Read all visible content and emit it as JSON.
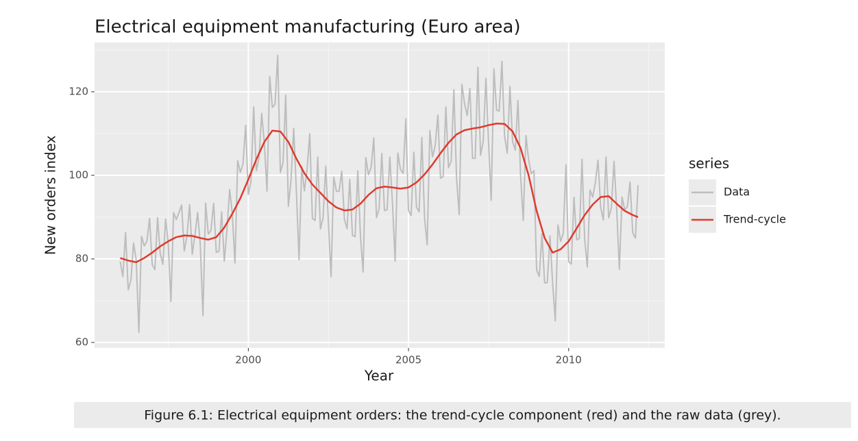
{
  "chart_data": {
    "type": "line",
    "title": "Electrical equipment manufacturing (Euro area)",
    "xlabel": "Year",
    "ylabel": "New orders index",
    "legend_title": "series",
    "legend": "right",
    "caption": "Figure 6.1: Electrical equipment orders: the trend-cycle component (red) and the raw data (grey).",
    "xlim": [
      1995.2,
      2013.0
    ],
    "xticks": [
      2000,
      2005,
      2010
    ],
    "ylim": [
      58.7,
      131.8
    ],
    "yticks": [
      60,
      80,
      100,
      120
    ],
    "grid": true,
    "minor_grid": true,
    "series": [
      {
        "name": "Data",
        "color": "#bdbdbd",
        "x": [
          1996,
          1996.083,
          1996.167,
          1996.25,
          1996.333,
          1996.417,
          1996.5,
          1996.583,
          1996.667,
          1996.75,
          1996.833,
          1996.917,
          1997,
          1997.083,
          1997.167,
          1997.25,
          1997.333,
          1997.417,
          1997.5,
          1997.583,
          1997.667,
          1997.75,
          1997.833,
          1997.917,
          1998,
          1998.083,
          1998.167,
          1998.25,
          1998.333,
          1998.417,
          1998.5,
          1998.583,
          1998.667,
          1998.75,
          1998.833,
          1998.917,
          1999,
          1999.083,
          1999.167,
          1999.25,
          1999.333,
          1999.417,
          1999.5,
          1999.583,
          1999.667,
          1999.75,
          1999.833,
          1999.917,
          2000,
          2000.083,
          2000.167,
          2000.25,
          2000.333,
          2000.417,
          2000.5,
          2000.583,
          2000.667,
          2000.75,
          2000.833,
          2000.917,
          2001,
          2001.083,
          2001.167,
          2001.25,
          2001.333,
          2001.417,
          2001.5,
          2001.583,
          2001.667,
          2001.75,
          2001.833,
          2001.917,
          2002,
          2002.083,
          2002.167,
          2002.25,
          2002.333,
          2002.417,
          2002.5,
          2002.583,
          2002.667,
          2002.75,
          2002.833,
          2002.917,
          2003,
          2003.083,
          2003.167,
          2003.25,
          2003.333,
          2003.417,
          2003.5,
          2003.583,
          2003.667,
          2003.75,
          2003.833,
          2003.917,
          2004,
          2004.083,
          2004.167,
          2004.25,
          2004.333,
          2004.417,
          2004.5,
          2004.583,
          2004.667,
          2004.75,
          2004.833,
          2004.917,
          2005,
          2005.083,
          2005.167,
          2005.25,
          2005.333,
          2005.417,
          2005.5,
          2005.583,
          2005.667,
          2005.75,
          2005.833,
          2005.917,
          2006,
          2006.083,
          2006.167,
          2006.25,
          2006.333,
          2006.417,
          2006.5,
          2006.583,
          2006.667,
          2006.75,
          2006.833,
          2006.917,
          2007,
          2007.083,
          2007.167,
          2007.25,
          2007.333,
          2007.417,
          2007.5,
          2007.583,
          2007.667,
          2007.75,
          2007.833,
          2007.917,
          2008,
          2008.083,
          2008.167,
          2008.25,
          2008.333,
          2008.417,
          2008.5,
          2008.583,
          2008.667,
          2008.75,
          2008.833,
          2008.917,
          2009,
          2009.083,
          2009.167,
          2009.25,
          2009.333,
          2009.417,
          2009.5,
          2009.583,
          2009.667,
          2009.75,
          2009.833,
          2009.917,
          2010,
          2010.083,
          2010.167,
          2010.25,
          2010.333,
          2010.417,
          2010.5,
          2010.583,
          2010.667,
          2010.75,
          2010.833,
          2010.917,
          2011,
          2011.083,
          2011.167,
          2011.25,
          2011.333,
          2011.417,
          2011.5,
          2011.583,
          2011.667,
          2011.75,
          2011.833,
          2011.917,
          2012,
          2012.083,
          2012.167
        ],
        "values": [
          79.35,
          75.78,
          86.32,
          72.6,
          74.86,
          83.81,
          79.8,
          62.41,
          85.41,
          83.11,
          84.21,
          89.7,
          78.64,
          77.42,
          89.86,
          81.27,
          78.68,
          89.51,
          83.67,
          69.8,
          91.09,
          89.43,
          91.04,
          92.87,
          81.87,
          85.36,
          92.98,
          81.09,
          85.64,
          91.14,
          83.46,
          66.37,
          93.34,
          85.93,
          86.81,
          93.3,
          81.59,
          81.77,
          91.24,
          79.45,
          86.99,
          96.6,
          90.8,
          79,
          103.48,
          100.71,
          102.77,
          111.97,
          95.42,
          98.49,
          116.37,
          101.09,
          104.2,
          114.79,
          107.75,
          96.23,
          123.65,
          116.24,
          117,
          128.75,
          100.69,
          102.99,
          119.21,
          92.56,
          98.86,
          111.26,
          96.25,
          79.81,
          102.18,
          96.28,
          101.38,
          109.97,
          89.66,
          89.2,
          104.34,
          87.14,
          89.81,
          102.21,
          88.71,
          75.76,
          99.55,
          96.2,
          96.16,
          101,
          89.45,
          87.22,
          99,
          85.65,
          85.32,
          101.07,
          85.53,
          76.87,
          104.25,
          100.12,
          101.94,
          108.96,
          89.87,
          92.03,
          105.23,
          91.56,
          91.78,
          104.34,
          93.3,
          79.48,
          105.34,
          101.41,
          100.46,
          113.52,
          91.6,
          90.39,
          105.53,
          92.38,
          91.27,
          109.07,
          90.01,
          83.35,
          110.72,
          104.4,
          107.08,
          114.43,
          99.29,
          99.71,
          116.37,
          101.83,
          103.38,
          120.52,
          99.45,
          90.61,
          121.79,
          117.15,
          114.3,
          120.79,
          104.06,
          104.08,
          125.85,
          104.79,
          108.18,
          123.22,
          107.68,
          94.02,
          125.46,
          115.57,
          115.4,
          127.27,
          109.37,
          105.29,
          121.29,
          108.06,
          106.03,
          117.88,
          99.86,
          89.19,
          109.52,
          103.77,
          100.39,
          101.09,
          77.3,
          75.8,
          86.01,
          74.25,
          74.33,
          85.48,
          74.17,
          65.19,
          88.15,
          84.19,
          86.19,
          102.54,
          79.36,
          78.75,
          94.76,
          84.53,
          84.91,
          103.86,
          84.68,
          78.07,
          96.49,
          94.81,
          98.19,
          103.6,
          92.3,
          89.32,
          104.38,
          89.82,
          92.14,
          103.35,
          91.81,
          77.49,
          94.79,
          91.75,
          92.48,
          98.38,
          86.23,
          84.96,
          97.68
        ]
      },
      {
        "name": "Trend-cycle",
        "color": "#e0392b",
        "x": [
          1996,
          1996.25,
          1996.5,
          1996.75,
          1997,
          1997.25,
          1997.5,
          1997.75,
          1998,
          1998.25,
          1998.5,
          1998.75,
          1999,
          1999.25,
          1999.5,
          1999.75,
          2000,
          2000.25,
          2000.5,
          2000.75,
          2001,
          2001.25,
          2001.5,
          2001.75,
          2002,
          2002.25,
          2002.5,
          2002.75,
          2003,
          2003.25,
          2003.5,
          2003.75,
          2004,
          2004.25,
          2004.5,
          2004.75,
          2005,
          2005.25,
          2005.5,
          2005.75,
          2006,
          2006.25,
          2006.5,
          2006.75,
          2007,
          2007.25,
          2007.5,
          2007.75,
          2008,
          2008.25,
          2008.5,
          2008.75,
          2009,
          2009.25,
          2009.5,
          2009.75,
          2010,
          2010.25,
          2010.5,
          2010.75,
          2011,
          2011.25,
          2011.5,
          2011.75,
          2012,
          2012.167
        ],
        "values": [
          80.2,
          79.6,
          79.2,
          80.2,
          81.5,
          83,
          84.2,
          85.2,
          85.6,
          85.5,
          85,
          84.6,
          85.2,
          87.5,
          90.8,
          94.5,
          99,
          103.8,
          108,
          110.7,
          110.5,
          108,
          104,
          100.5,
          97.8,
          95.8,
          93.8,
          92.3,
          91.6,
          91.8,
          93.2,
          95.3,
          96.9,
          97.3,
          97.1,
          96.8,
          97.1,
          98.3,
          100.2,
          102.6,
          105.3,
          107.8,
          109.8,
          110.8,
          111.2,
          111.5,
          112,
          112.4,
          112.3,
          110.5,
          106.5,
          100,
          91.5,
          85,
          81.5,
          82.3,
          84.2,
          87.3,
          90.5,
          93,
          94.8,
          95,
          93.2,
          91.5,
          90.5,
          90
        ]
      }
    ]
  }
}
